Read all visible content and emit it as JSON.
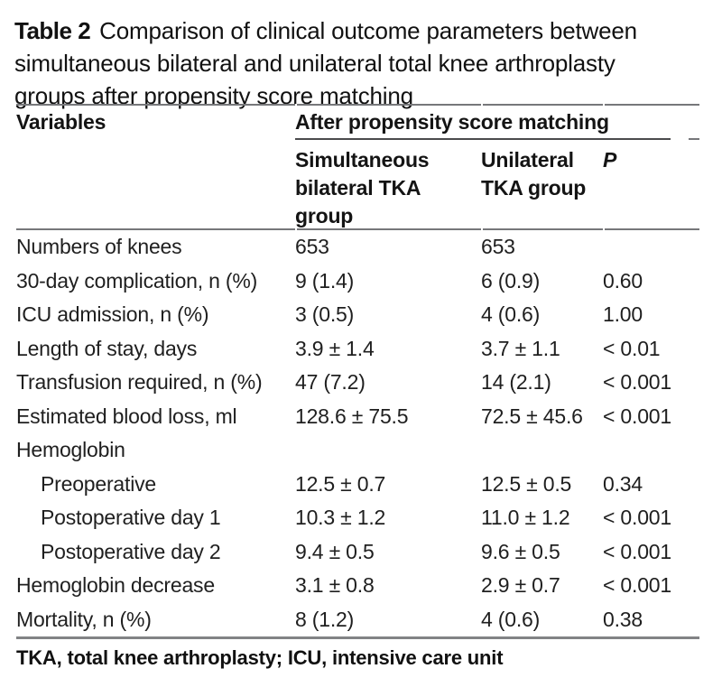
{
  "caption": {
    "label": "Table 2",
    "text": "Comparison of clinical outcome parameters between simultaneous bilateral and unilateral total knee arthroplasty groups after propensity score matching"
  },
  "table": {
    "col1_header": "Variables",
    "spanner": "After propensity score matching",
    "columns": [
      "Simultaneous bilateral TKA group",
      "Unilateral TKA group",
      "P"
    ],
    "rows": [
      {
        "label": "Numbers of knees",
        "indent": false,
        "bilateral": "653",
        "unilateral": "653",
        "p": ""
      },
      {
        "label": "30-day complication, n (%)",
        "indent": false,
        "bilateral": "9 (1.4)",
        "unilateral": "6 (0.9)",
        "p": "0.60"
      },
      {
        "label": "ICU admission, n (%)",
        "indent": false,
        "bilateral": "3 (0.5)",
        "unilateral": "4 (0.6)",
        "p": "1.00"
      },
      {
        "label": "Length of stay, days",
        "indent": false,
        "bilateral": "3.9 ± 1.4",
        "unilateral": "3.7 ± 1.1",
        "p": "< 0.01"
      },
      {
        "label": "Transfusion required, n (%)",
        "indent": false,
        "bilateral": "47 (7.2)",
        "unilateral": "14 (2.1)",
        "p": "< 0.001"
      },
      {
        "label": "Estimated blood loss, ml",
        "indent": false,
        "bilateral": "128.6 ± 75.5",
        "unilateral": "72.5 ± 45.6",
        "p": "< 0.001"
      },
      {
        "label": "Hemoglobin",
        "indent": false,
        "bilateral": "",
        "unilateral": "",
        "p": ""
      },
      {
        "label": "Preoperative",
        "indent": true,
        "bilateral": "12.5 ± 0.7",
        "unilateral": "12.5 ± 0.5",
        "p": "0.34"
      },
      {
        "label": "Postoperative day 1",
        "indent": true,
        "bilateral": "10.3 ± 1.2",
        "unilateral": "11.0 ± 1.2",
        "p": "< 0.001"
      },
      {
        "label": "Postoperative day 2",
        "indent": true,
        "bilateral": "9.4 ± 0.5",
        "unilateral": "9.6 ± 0.5",
        "p": "< 0.001"
      },
      {
        "label": "Hemoglobin decrease",
        "indent": false,
        "bilateral": "3.1 ± 0.8",
        "unilateral": "2.9 ± 0.7",
        "p": "< 0.001"
      },
      {
        "label": "Mortality, n (%)",
        "indent": false,
        "bilateral": "8 (1.2)",
        "unilateral": "4 (0.6)",
        "p": "0.38"
      }
    ],
    "footnote": "TKA, total knee arthroplasty; ICU, intensive care unit"
  }
}
